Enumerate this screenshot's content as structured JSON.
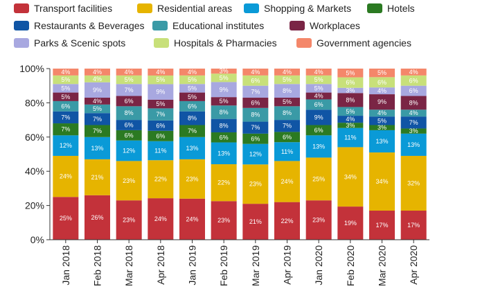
{
  "chart_data": {
    "type": "bar",
    "stacked": true,
    "normalized": true,
    "categories": [
      "Jan 2018",
      "Feb 2018",
      "Mar 2018",
      "Apr 2018",
      "Jan 2019",
      "Feb 2019",
      "Mar 2019",
      "Apr 2019",
      "Jan 2020",
      "Feb 2020",
      "Mar 2020",
      "Apr 2020"
    ],
    "ylim": [
      0,
      100
    ],
    "yticks": [
      "0%",
      "20%",
      "40%",
      "60%",
      "80%",
      "100%"
    ],
    "legend_position": "top",
    "series": [
      {
        "name": "Transport facilities",
        "color": "#c3323a",
        "values": [
          25,
          26,
          23,
          24,
          24,
          23,
          21,
          22,
          23,
          19,
          17,
          17
        ]
      },
      {
        "name": "Residential areas",
        "color": "#e6b400",
        "values": [
          24,
          21,
          23,
          22,
          23,
          22,
          23,
          24,
          25,
          34,
          34,
          32
        ]
      },
      {
        "name": "Shopping & Markets",
        "color": "#0a9ad7",
        "values": [
          12,
          13,
          12,
          11,
          13,
          13,
          12,
          11,
          13,
          11,
          13,
          13
        ]
      },
      {
        "name": "Hotels",
        "color": "#2b7a22",
        "values": [
          7,
          7,
          6,
          6,
          7,
          6,
          6,
          6,
          6,
          3,
          3,
          3
        ]
      },
      {
        "name": "Restaurants & Beverages",
        "color": "#1055a5",
        "values": [
          7,
          7,
          6,
          6,
          8,
          8,
          7,
          7,
          9,
          4,
          5,
          7
        ]
      },
      {
        "name": "Educational institutes",
        "color": "#3a9aa6",
        "values": [
          6,
          5,
          8,
          7,
          6,
          8,
          8,
          8,
          6,
          5,
          4,
          4
        ]
      },
      {
        "name": "Workplaces",
        "color": "#7a2545",
        "values": [
          5,
          4,
          6,
          5,
          5,
          5,
          6,
          5,
          4,
          8,
          9,
          8
        ]
      },
      {
        "name": "Parks & Scenic spots",
        "color": "#a8a8e0",
        "values": [
          5,
          9,
          7,
          9,
          5,
          9,
          7,
          8,
          5,
          3,
          4,
          6
        ]
      },
      {
        "name": "Hospitals & Pharmacies",
        "color": "#c8e07a",
        "values": [
          5,
          4,
          5,
          5,
          5,
          5,
          6,
          5,
          5,
          6,
          6,
          6
        ]
      },
      {
        "name": "Government agencies",
        "color": "#f4876a",
        "values": [
          4,
          4,
          4,
          4,
          4,
          3,
          4,
          4,
          4,
          5,
          5,
          4
        ]
      }
    ],
    "labels": [
      [
        "25%",
        "24%",
        "12%",
        "7%",
        "7%",
        "6%",
        "5%",
        "5%",
        "5%",
        "4%"
      ],
      [
        "26%",
        "21%",
        "13%",
        "7%",
        "7%",
        "5%",
        "4%",
        "9%",
        "4%",
        "4%"
      ],
      [
        "23%",
        "23%",
        "12%",
        "6%",
        "6%",
        "8%",
        "6%",
        "7%",
        "5%",
        "4%"
      ],
      [
        "24%",
        "22%",
        "11%",
        "6%",
        "6%",
        "7%",
        "5%",
        "9%",
        "5%",
        "4%"
      ],
      [
        "24%",
        "23%",
        "13%",
        "7%",
        "8%",
        "6%",
        "5%",
        "5%",
        "5%",
        "4%"
      ],
      [
        "23%",
        "22%",
        "13%",
        "6%",
        "8%",
        "8%",
        "5%",
        "9%",
        "5%",
        "3%"
      ],
      [
        "21%",
        "23%",
        "12%",
        "6%",
        "7%",
        "8%",
        "6%",
        "7%",
        "6%",
        "4%"
      ],
      [
        "22%",
        "24%",
        "11%",
        "6%",
        "7%",
        "8%",
        "5%",
        "8%",
        "5%",
        "4%"
      ],
      [
        "23%",
        "25%",
        "13%",
        "6%",
        "9%",
        "6%",
        "4%",
        "5%",
        "5%",
        "4%"
      ],
      [
        "19%",
        "34%",
        "11%",
        "3%",
        "4%",
        "5%",
        "8%",
        "3%",
        "6%",
        "5%"
      ],
      [
        "17%",
        "34%",
        "13%",
        "3%",
        "5%",
        "4%",
        "9%",
        "4%",
        "6%",
        "5%"
      ],
      [
        "17%",
        "32%",
        "13%",
        "3%",
        "7%",
        "4%",
        "8%",
        "6%",
        "6%",
        "4%"
      ]
    ]
  }
}
